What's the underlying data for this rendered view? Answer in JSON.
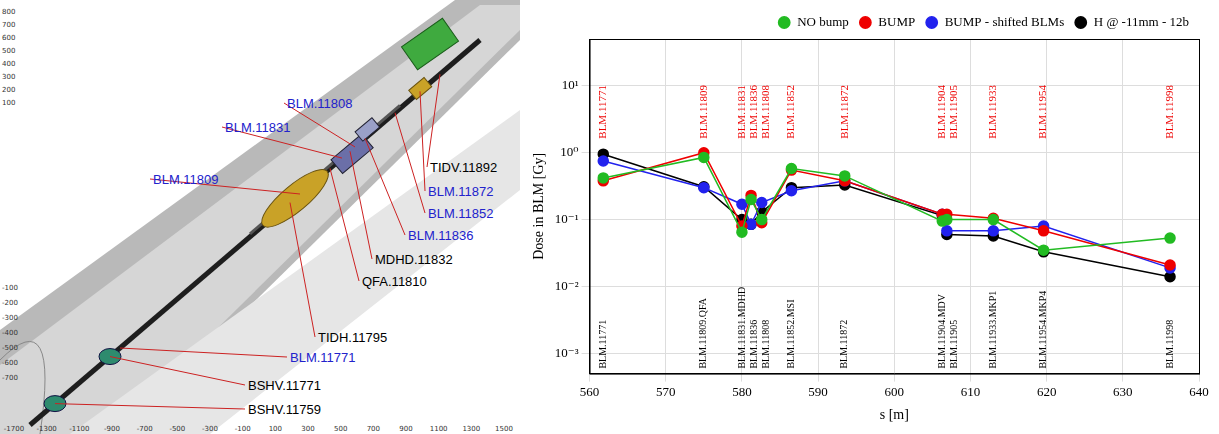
{
  "chart_data": {
    "type": "line",
    "x_label": "s [m]",
    "y_label": "Dose in BLM [Gy]",
    "log": "y",
    "grid": true,
    "legend": "top right",
    "xlim": [
      560,
      640
    ],
    "xticks": [
      560,
      570,
      580,
      590,
      600,
      610,
      620,
      630,
      640
    ],
    "ylim": [
      0.0005,
      50
    ],
    "yticks": [
      {
        "value": 0.001,
        "label": "10⁻³"
      },
      {
        "value": 0.01,
        "label": "10⁻²"
      },
      {
        "value": 0.1,
        "label": "10⁻¹"
      },
      {
        "value": 1,
        "label": "10⁰"
      },
      {
        "value": 10,
        "label": "10¹"
      }
    ],
    "x": [
      561.8,
      575.0,
      580.0,
      581.2,
      582.6,
      586.5,
      593.5,
      606.3,
      606.9,
      613.0,
      619.6,
      636.2
    ],
    "series": [
      {
        "name": "NO bump",
        "color": "#22bb22",
        "marker": "circle",
        "values": [
          0.42,
          0.85,
          0.065,
          0.2,
          0.1,
          0.58,
          0.45,
          0.095,
          0.1,
          0.1,
          0.035,
          0.053
        ]
      },
      {
        "name": "BUMP",
        "color": "#ee0000",
        "marker": "circle",
        "values": [
          0.38,
          1.0,
          0.08,
          0.23,
          0.09,
          0.55,
          0.38,
          0.12,
          0.12,
          0.105,
          0.068,
          0.021
        ]
      },
      {
        "name": "BUMP - shifted BLMs",
        "color": "#2222ee",
        "marker": "circle",
        "values": [
          0.75,
          0.3,
          0.17,
          0.085,
          0.18,
          0.27,
          0.38,
          0.12,
          0.068,
          0.068,
          0.08,
          0.019
        ]
      },
      {
        "name": "H @ -11mm - 12b",
        "color": "#000000",
        "marker": "circle",
        "values": [
          0.95,
          0.31,
          0.1,
          0.085,
          0.13,
          0.3,
          0.33,
          0.115,
          0.06,
          0.057,
          0.033,
          0.014
        ]
      }
    ],
    "annotations": [
      {
        "text": "BLM.11771",
        "x": 561.8,
        "color": "#ee0000"
      },
      {
        "text": "BLM.11809",
        "x": 575.0,
        "color": "#ee0000"
      },
      {
        "text": "BLM.11831",
        "x": 580.0,
        "color": "#ee0000"
      },
      {
        "text": "BLM.11836",
        "x": 581.2,
        "color": "#ee0000"
      },
      {
        "text": "BLM.11808",
        "x": 582.6,
        "color": "#ee0000"
      },
      {
        "text": "BLM.11852",
        "x": 586.5,
        "color": "#ee0000"
      },
      {
        "text": "BLM.11872",
        "x": 593.5,
        "color": "#ee0000"
      },
      {
        "text": "BLM.11904",
        "x": 606.3,
        "color": "#ee0000"
      },
      {
        "text": "BLM.11905",
        "x": 606.9,
        "color": "#ee0000"
      },
      {
        "text": "BLM.11933",
        "x": 613.0,
        "color": "#ee0000"
      },
      {
        "text": "BLM.11954",
        "x": 619.6,
        "color": "#ee0000"
      },
      {
        "text": "BLM.11998",
        "x": 636.2,
        "color": "#ee0000"
      },
      {
        "text": "BLM.11771",
        "x": 561.8,
        "color": "#000000"
      },
      {
        "text": "BLM.11809.QFA",
        "x": 575.0,
        "color": "#000000"
      },
      {
        "text": "BLM.11831.MDHD",
        "x": 580.0,
        "color": "#000000"
      },
      {
        "text": "BLM.11836",
        "x": 581.2,
        "color": "#000000"
      },
      {
        "text": "BLM.11808",
        "x": 582.6,
        "color": "#000000"
      },
      {
        "text": "BLM.11852.MSI",
        "x": 586.5,
        "color": "#000000"
      },
      {
        "text": "BLM.11872",
        "x": 593.5,
        "color": "#000000"
      },
      {
        "text": "BLM.11904.MDV",
        "x": 606.3,
        "color": "#000000"
      },
      {
        "text": "BLM.11905",
        "x": 606.9,
        "color": "#000000"
      },
      {
        "text": "BLM.11933.MKP1",
        "x": 613.0,
        "color": "#000000"
      },
      {
        "text": "BLM.11954.MKP4",
        "x": 619.6,
        "color": "#000000"
      },
      {
        "text": "BLM.11998",
        "x": 636.2,
        "color": "#000000"
      }
    ]
  },
  "diagram": {
    "blm_labels": [
      "BLM.11808",
      "BLM.11831",
      "BLM.11809",
      "BLM.11872",
      "BLM.11852",
      "BLM.11836",
      "BLM.11771"
    ],
    "component_labels": [
      "TIDV.11892",
      "MDHD.11832",
      "QFA.11810",
      "TIDH.11795",
      "BSHV.11771",
      "BSHV.11759"
    ],
    "axis_ticks_bottom": [
      -1700,
      -1300,
      -1100,
      -900,
      -700,
      -500,
      -300,
      -100,
      100,
      300,
      500,
      700,
      900,
      1100,
      1300,
      1500
    ],
    "axis_ticks_left": [
      800,
      700,
      600,
      500,
      400,
      300,
      200,
      100,
      -100,
      -200,
      -300,
      -400,
      -500,
      -600,
      -700
    ]
  }
}
